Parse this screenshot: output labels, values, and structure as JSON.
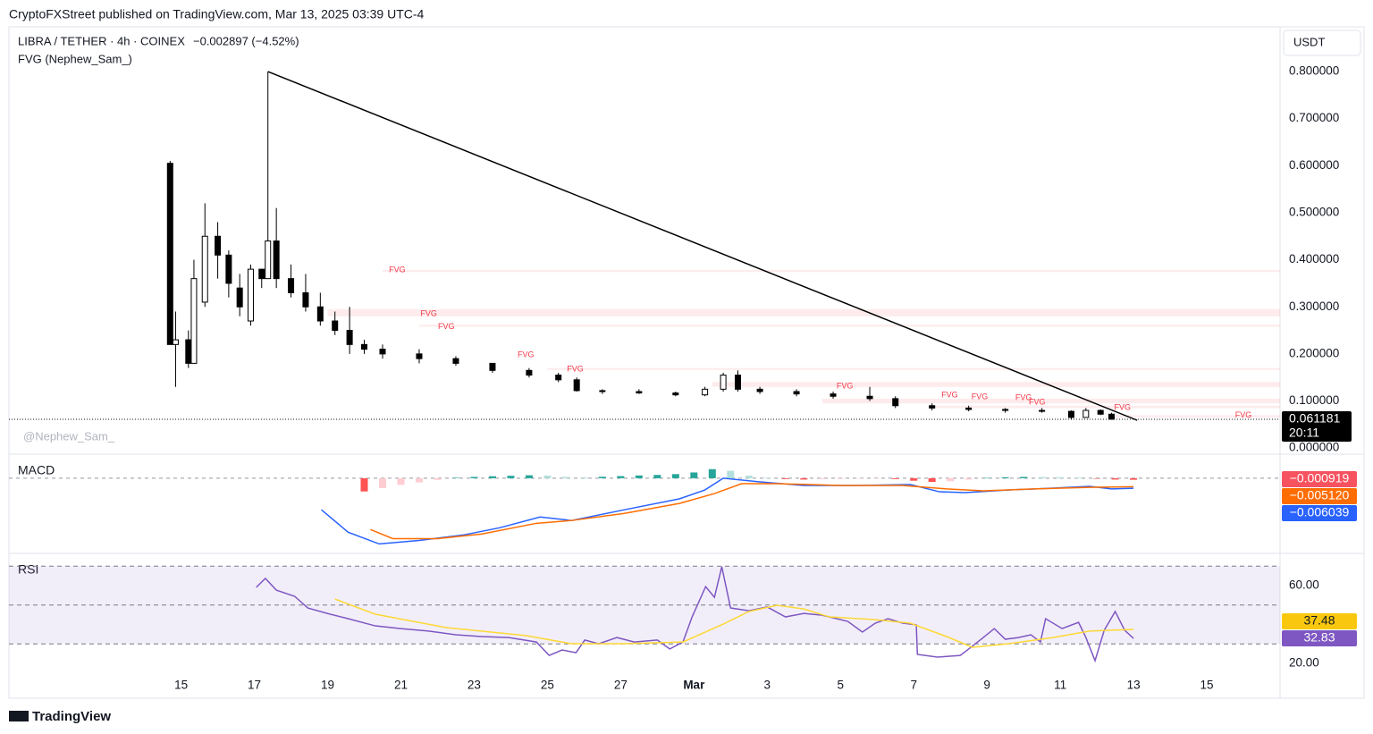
{
  "header": {
    "byline": "CryptoFXStreet published on TradingView.com, Mar 13, 2025 03:39 UTC-4"
  },
  "footer": {
    "brand": "TradingView"
  },
  "chart_data": [
    {
      "type": "candlestick",
      "title": "LIBRA / TETHER · 4h · COINEX",
      "subtitle": "−0.002897 (−4.52%)",
      "indicator": "FVG (Nephew_Sam_)",
      "currency": "USDT",
      "watermark": "@Nephew_Sam_",
      "countdown": "20:11",
      "x": [
        -0.3,
        -0.15,
        0.2,
        0.35,
        0.65,
        1.0,
        1.3,
        1.6,
        1.9,
        2.2,
        2.37,
        2.6,
        3.0,
        3.4,
        3.8,
        4.2,
        4.6,
        5.0,
        5.5,
        6.5,
        7.5,
        8.5,
        9.5,
        10.3,
        10.8,
        11.5,
        12.5,
        13.5,
        14.3,
        14.8,
        15.2,
        15.8,
        16.8,
        17.8,
        18.8,
        19.5,
        20.5,
        21.5,
        22.5,
        23.5,
        24.3,
        24.7,
        25.1,
        25.4
      ],
      "open": [
        0.605,
        0.22,
        0.23,
        0.18,
        0.31,
        0.45,
        0.41,
        0.34,
        0.27,
        0.38,
        0.36,
        0.44,
        0.36,
        0.33,
        0.3,
        0.27,
        0.25,
        0.22,
        0.21,
        0.2,
        0.19,
        0.18,
        0.165,
        0.155,
        0.145,
        0.122,
        0.12,
        0.117,
        0.113,
        0.125,
        0.155,
        0.125,
        0.12,
        0.115,
        0.11,
        0.105,
        0.09,
        0.085,
        0.082,
        0.08,
        0.078,
        0.065,
        0.08,
        0.072
      ],
      "high": [
        0.61,
        0.29,
        0.25,
        0.4,
        0.52,
        0.48,
        0.42,
        0.37,
        0.39,
        0.38,
        0.8,
        0.51,
        0.39,
        0.37,
        0.33,
        0.29,
        0.3,
        0.23,
        0.22,
        0.21,
        0.195,
        0.18,
        0.17,
        0.16,
        0.15,
        0.125,
        0.125,
        0.12,
        0.13,
        0.16,
        0.165,
        0.13,
        0.125,
        0.12,
        0.13,
        0.11,
        0.095,
        0.09,
        0.085,
        0.085,
        0.08,
        0.085,
        0.082,
        0.075
      ],
      "low": [
        0.22,
        0.13,
        0.17,
        0.18,
        0.3,
        0.36,
        0.32,
        0.28,
        0.26,
        0.34,
        0.36,
        0.34,
        0.32,
        0.29,
        0.26,
        0.24,
        0.2,
        0.2,
        0.19,
        0.18,
        0.175,
        0.16,
        0.15,
        0.14,
        0.12,
        0.115,
        0.115,
        0.11,
        0.11,
        0.12,
        0.12,
        0.115,
        0.11,
        0.105,
        0.1,
        0.085,
        0.08,
        0.078,
        0.075,
        0.075,
        0.06,
        0.064,
        0.07,
        0.06
      ],
      "close": [
        0.22,
        0.23,
        0.18,
        0.36,
        0.45,
        0.41,
        0.35,
        0.3,
        0.38,
        0.36,
        0.44,
        0.36,
        0.33,
        0.3,
        0.27,
        0.25,
        0.22,
        0.21,
        0.2,
        0.19,
        0.18,
        0.165,
        0.155,
        0.145,
        0.122,
        0.12,
        0.117,
        0.113,
        0.125,
        0.155,
        0.125,
        0.12,
        0.115,
        0.11,
        0.105,
        0.09,
        0.085,
        0.082,
        0.08,
        0.078,
        0.065,
        0.08,
        0.072,
        0.061181
      ],
      "xlim": [
        -4.7,
        30
      ],
      "xticks": [
        {
          "value": 0,
          "label": "15"
        },
        {
          "value": 2,
          "label": "17"
        },
        {
          "value": 4,
          "label": "19"
        },
        {
          "value": 6,
          "label": "21"
        },
        {
          "value": 8,
          "label": "23"
        },
        {
          "value": 10,
          "label": "25"
        },
        {
          "value": 12,
          "label": "27"
        },
        {
          "value": 14,
          "label": "Mar"
        },
        {
          "value": 16,
          "label": "3"
        },
        {
          "value": 18,
          "label": "5"
        },
        {
          "value": 20,
          "label": "7"
        },
        {
          "value": 22,
          "label": "9"
        },
        {
          "value": 24,
          "label": "11"
        },
        {
          "value": 26,
          "label": "13"
        },
        {
          "value": 28,
          "label": "15"
        }
      ],
      "ylim": [
        -0.013,
        0.895
      ],
      "yticks": [
        {
          "value": 0.8,
          "label": "0.800000"
        },
        {
          "value": 0.7,
          "label": "0.700000"
        },
        {
          "value": 0.6,
          "label": "0.600000"
        },
        {
          "value": 0.5,
          "label": "0.500000"
        },
        {
          "value": 0.4,
          "label": "0.400000"
        },
        {
          "value": 0.3,
          "label": "0.300000"
        },
        {
          "value": 0.2,
          "label": "0.200000"
        },
        {
          "value": 0.1,
          "label": "0.100000"
        },
        {
          "value": 0,
          "label": "0.000000"
        }
      ],
      "trendline": {
        "x": [
          2.37,
          26.1
        ],
        "y": [
          0.8,
          0.059
        ],
        "color": "#000000"
      },
      "fvg_zones": [
        {
          "x": [
            4.0,
            30
          ],
          "y": [
            0.28,
            0.295
          ]
        },
        {
          "x": [
            5.5,
            30
          ],
          "y": [
            0.374,
            0.378
          ]
        },
        {
          "x": [
            6.5,
            30
          ],
          "y": [
            0.258,
            0.262
          ]
        },
        {
          "x": [
            10,
            30
          ],
          "y": [
            0.166,
            0.17
          ]
        },
        {
          "x": [
            14.5,
            30
          ],
          "y": [
            0.13,
            0.14
          ]
        },
        {
          "x": [
            17.5,
            30
          ],
          "y": [
            0.095,
            0.105
          ]
        },
        {
          "x": [
            20.5,
            30
          ],
          "y": [
            0.085,
            0.09
          ]
        },
        {
          "x": [
            25.5,
            30
          ],
          "y": [
            0.065,
            0.07
          ]
        }
      ],
      "fvg_color": "#f23645",
      "annotations": [
        {
          "text": "FVG",
          "x": 5.9,
          "y": 0.378
        },
        {
          "text": "FVG",
          "x": 6.76,
          "y": 0.285
        },
        {
          "text": "FVG",
          "x": 7.24,
          "y": 0.257
        },
        {
          "text": "FVG",
          "x": 9.41,
          "y": 0.198
        },
        {
          "text": "FVG",
          "x": 10.76,
          "y": 0.167
        },
        {
          "text": "FVG",
          "x": 18.12,
          "y": 0.131
        },
        {
          "text": "FVG",
          "x": 20.98,
          "y": 0.112
        },
        {
          "text": "FVG",
          "x": 21.8,
          "y": 0.108
        },
        {
          "text": "FVG",
          "x": 23.0,
          "y": 0.106
        },
        {
          "text": "FVG",
          "x": 23.37,
          "y": 0.097
        },
        {
          "text": "FVG",
          "x": 25.7,
          "y": 0.086
        },
        {
          "text": "FVG",
          "x": 29.0,
          "y": 0.069
        }
      ]
    },
    {
      "type": "macd",
      "title": "MACD",
      "ylim": [
        -0.045,
        0.0135
      ],
      "histogram": {
        "x": [
          5,
          5.5,
          6,
          6.5,
          7,
          7.5,
          8,
          8.5,
          9,
          9.5,
          10,
          10.5,
          11,
          11.5,
          12,
          12.5,
          13,
          13.5,
          14,
          14.5,
          15,
          15.5,
          16,
          16.5,
          17,
          17.5,
          18,
          18.5,
          19,
          19.5,
          20,
          20.5,
          21,
          21.5,
          22,
          22.5,
          23,
          23.5,
          24,
          24.5,
          25,
          25.5,
          26
        ],
        "values": [
          -0.008,
          -0.006,
          -0.004,
          -0.0025,
          -0.001,
          0.0003,
          0.0008,
          0.0012,
          0.0015,
          0.0018,
          0.0016,
          0.0008,
          0.0005,
          0.0009,
          0.0013,
          0.0017,
          0.002,
          0.0025,
          0.0035,
          0.0055,
          0.0045,
          0.0015,
          0.0003,
          -0.0005,
          -0.0008,
          -0.0006,
          -0.0004,
          -0.0003,
          -0.0002,
          -0.0005,
          -0.0015,
          -0.0022,
          -0.0018,
          -0.0008,
          0.0002,
          0.0006,
          0.0008,
          0.0007,
          0.0006,
          0.0004,
          -0.0003,
          -0.0008,
          -0.000919
        ],
        "colors": [
          "#26a69a",
          "#b2dfdb",
          "#ffcdd2",
          "#ff5252"
        ],
        "label_color": "#f7525f",
        "last_label": "−0.000919"
      },
      "series": [
        {
          "name": "MACD",
          "color": "#2962ff",
          "last_label": "−0.006039",
          "x": [
            3.83,
            4.56,
            5.41,
            6.5,
            7.7,
            8.7,
            9.8,
            10.66,
            12.1,
            13.6,
            14.3,
            14.8,
            15.8,
            17,
            18.5,
            19.9,
            20.7,
            21.4,
            22.6,
            23.8,
            24.8,
            25.4,
            26
          ],
          "values": [
            -0.0191,
            -0.0327,
            -0.0398,
            -0.0377,
            -0.0344,
            -0.03,
            -0.0235,
            -0.0256,
            -0.0191,
            -0.0125,
            -0.0071,
            0,
            -0.0022,
            -0.0044,
            -0.0044,
            -0.0038,
            -0.0082,
            -0.0087,
            -0.0071,
            -0.006,
            -0.0049,
            -0.0065,
            -0.006039
          ]
        },
        {
          "name": "Signal",
          "color": "#ff6d00",
          "last_label": "−0.005120",
          "x": [
            5.17,
            5.78,
            7,
            8.2,
            9.7,
            10.66,
            12.1,
            13.6,
            14.56,
            15.3,
            16.3,
            18,
            19.7,
            20.9,
            21.9,
            23.3,
            24.8,
            26
          ],
          "values": [
            -0.0311,
            -0.0366,
            -0.0366,
            -0.0338,
            -0.0273,
            -0.0256,
            -0.0213,
            -0.0153,
            -0.0093,
            -0.0033,
            -0.0033,
            -0.0044,
            -0.0044,
            -0.0065,
            -0.0076,
            -0.0065,
            -0.0055,
            -0.00512
          ]
        }
      ]
    },
    {
      "type": "rsi",
      "title": "RSI",
      "ylim": [
        15.4,
        75.2
      ],
      "yticks": [
        {
          "value": 60,
          "label": "60.00"
        },
        {
          "value": 20,
          "label": "20.00"
        }
      ],
      "band": [
        30,
        70
      ],
      "band_lines": [
        70,
        50,
        30
      ],
      "band_color": "#7e57c2",
      "series": [
        {
          "name": "RSI",
          "color": "#7e57c2",
          "x": [
            2.05,
            2.3,
            2.6,
            3.1,
            3.46,
            4.07,
            4.56,
            5.3,
            6.0,
            6.76,
            7.5,
            8.2,
            8.95,
            9.7,
            10.05,
            10.4,
            10.78,
            11.02,
            11.4,
            11.9,
            12.37,
            13,
            13.34,
            13.7,
            13.95,
            14.32,
            14.56,
            14.76,
            15,
            15.5,
            16,
            16.5,
            17,
            17.5,
            18.2,
            18.6,
            18.95,
            19.3,
            19.7,
            20.07,
            20.1,
            20.65,
            21.27,
            21.5,
            21.9,
            22.2,
            22.5,
            22.86,
            23.2,
            23.46,
            23.6,
            24.05,
            24.5,
            24.7,
            24.95,
            25.2,
            25.5,
            25.76,
            26
          ],
          "values": [
            59.1,
            63.7,
            57.7,
            54.5,
            48.5,
            45.3,
            43,
            39.3,
            37.9,
            36.6,
            34.7,
            33.8,
            33.3,
            31,
            24.1,
            26.9,
            25.5,
            32,
            30.1,
            33.3,
            31,
            32,
            27.4,
            31,
            43.9,
            59.5,
            54,
            69.7,
            48.5,
            47.1,
            49,
            43.9,
            45.7,
            44.8,
            41.6,
            36.1,
            40.7,
            43,
            40.7,
            39.8,
            24.6,
            23.2,
            24.1,
            27.4,
            33.3,
            37.9,
            32.4,
            33.3,
            34.7,
            31,
            43,
            37.9,
            41.1,
            33.3,
            21.4,
            37,
            46.7,
            37,
            32.83
          ]
        },
        {
          "name": "RSI MA",
          "color": "#fdd835",
          "label_color": "#f9c80e",
          "x": [
            4.2,
            5.3,
            7.24,
            9.41,
            10.66,
            12.1,
            13.7,
            14.8,
            15.5,
            16.27,
            17,
            17.7,
            18.95,
            19.9,
            20.9,
            21.6,
            22.6,
            23.8,
            24.8,
            26
          ],
          "values": [
            53.1,
            45.3,
            38.4,
            34.3,
            30.1,
            30.1,
            31,
            40.2,
            46.7,
            49.9,
            48,
            43.9,
            42.5,
            40.7,
            33.8,
            28.3,
            30.1,
            33.3,
            36.6,
            37.48
          ]
        }
      ]
    }
  ]
}
